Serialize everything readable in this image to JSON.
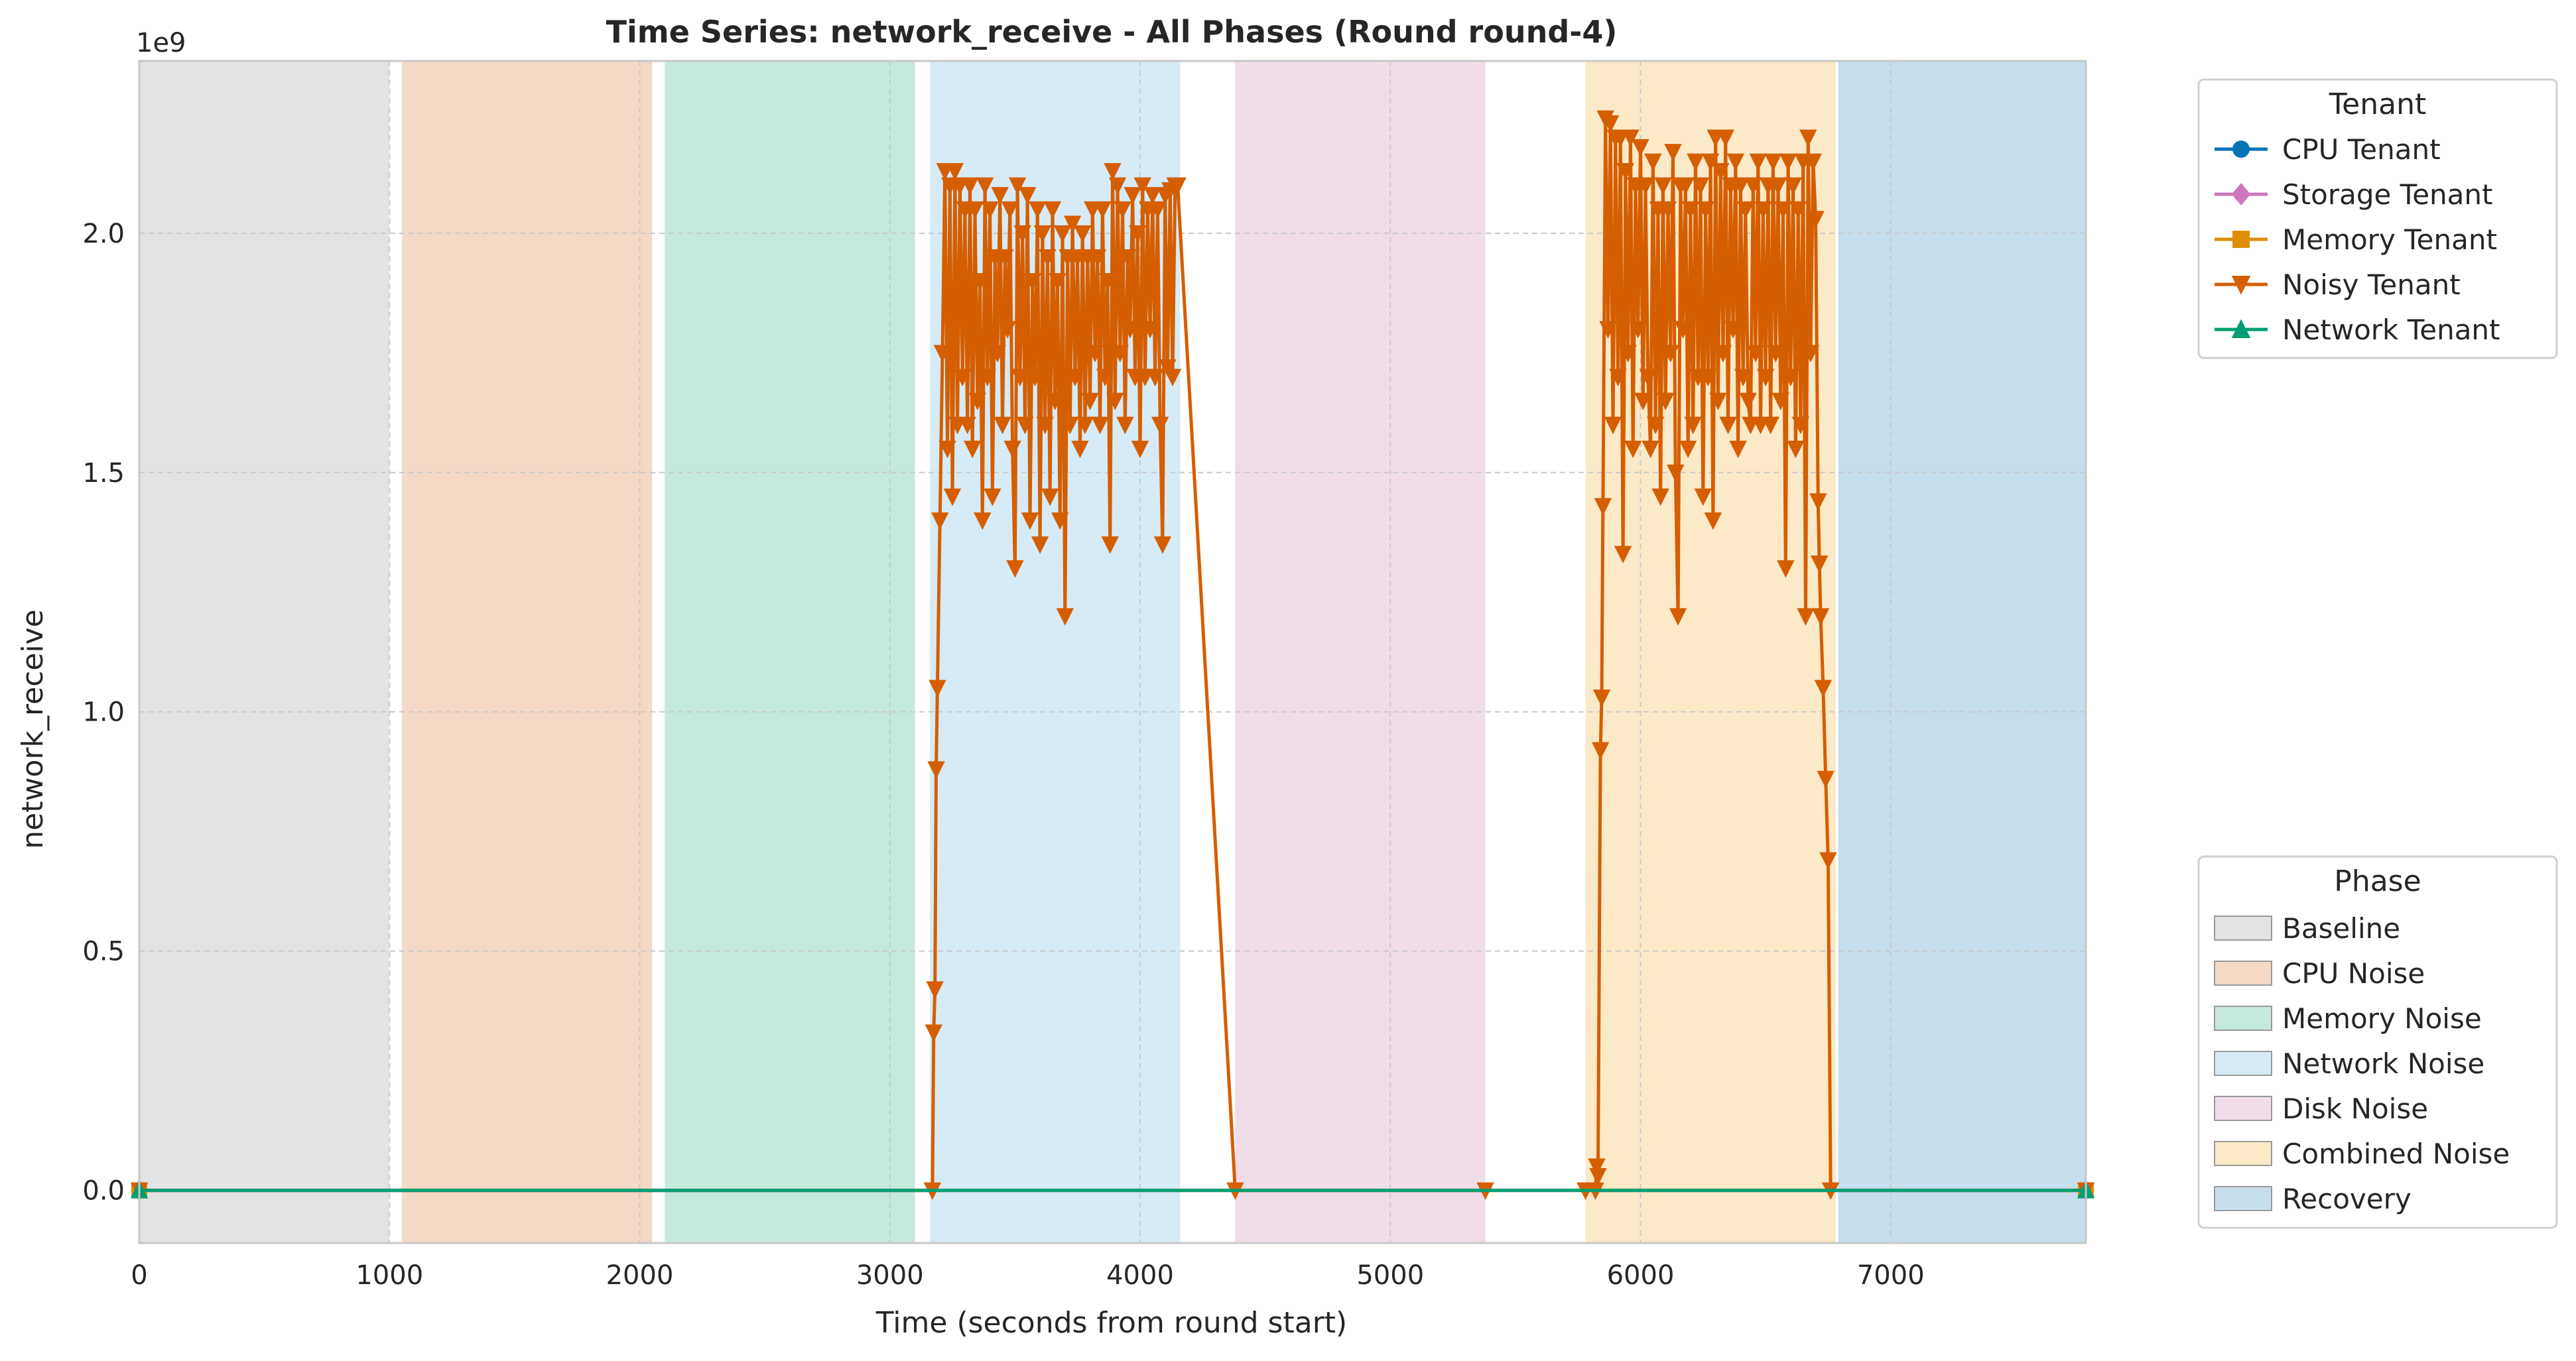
{
  "chart_data": {
    "type": "line",
    "title": "Time Series: network_receive - All Phases (Round round-4)",
    "xlabel": "Time (seconds from round start)",
    "ylabel": "network_receive",
    "y_offset_label": "1e9",
    "xlim": [
      0,
      7780
    ],
    "ylim": [
      -0.11,
      2.36
    ],
    "x_ticks": [
      0,
      1000,
      2000,
      3000,
      4000,
      5000,
      6000,
      7000
    ],
    "y_ticks": [
      0.0,
      0.5,
      1.0,
      1.5,
      2.0
    ],
    "y_tick_labels": [
      "0.0",
      "0.5",
      "1.0",
      "1.5",
      "2.0"
    ],
    "grid": true,
    "phases": [
      {
        "name": "Baseline",
        "start": 0,
        "end": 1000,
        "color": "#e3e3e3"
      },
      {
        "name": "CPU Noise",
        "start": 1050,
        "end": 2050,
        "color": "#f4d9c6"
      },
      {
        "name": "Memory Noise",
        "start": 2100,
        "end": 3100,
        "color": "#c6e9de"
      },
      {
        "name": "Network Noise",
        "start": 3160,
        "end": 4160,
        "color": "#d6ebf6"
      },
      {
        "name": "Disk Noise",
        "start": 4380,
        "end": 5380,
        "color": "#f1dcea"
      },
      {
        "name": "Combined Noise",
        "start": 5780,
        "end": 6780,
        "color": "#fbe9c8"
      },
      {
        "name": "Recovery",
        "start": 6790,
        "end": 7780,
        "color": "#c7deed"
      }
    ],
    "series": [
      {
        "name": "CPU Tenant",
        "color": "#0173b2",
        "marker": "circle",
        "segments": [
          [
            [
              0,
              0
            ],
            [
              7780,
              0
            ]
          ]
        ]
      },
      {
        "name": "Storage Tenant",
        "color": "#cc78bc",
        "marker": "diamond",
        "segments": [
          [
            [
              0,
              0
            ],
            [
              7780,
              0
            ]
          ]
        ]
      },
      {
        "name": "Memory Tenant",
        "color": "#de8f05",
        "marker": "square",
        "segments": [
          [
            [
              0,
              0
            ],
            [
              7780,
              0
            ]
          ]
        ]
      },
      {
        "name": "Noisy Tenant",
        "color": "#d55e00",
        "marker": "triangle-down",
        "segments": [
          [
            [
              0,
              0
            ],
            [
              3170,
              0
            ],
            [
              3175,
              0.33
            ],
            [
              3180,
              0.42
            ],
            [
              3185,
              0.88
            ],
            [
              3190,
              1.05
            ],
            [
              3200,
              1.4
            ],
            [
              3210,
              1.75
            ],
            [
              3220,
              2.13
            ],
            [
              3230,
              1.55
            ],
            [
              3240,
              2.1
            ],
            [
              3250,
              1.45
            ],
            [
              3260,
              2.13
            ],
            [
              3270,
              1.6
            ],
            [
              3280,
              2.1
            ],
            [
              3290,
              1.7
            ],
            [
              3300,
              2.05
            ],
            [
              3310,
              1.6
            ],
            [
              3320,
              2.1
            ],
            [
              3330,
              1.55
            ],
            [
              3340,
              2.05
            ],
            [
              3350,
              1.65
            ],
            [
              3360,
              1.9
            ],
            [
              3370,
              1.4
            ],
            [
              3380,
              2.1
            ],
            [
              3390,
              1.7
            ],
            [
              3400,
              2.05
            ],
            [
              3410,
              1.45
            ],
            [
              3420,
              1.95
            ],
            [
              3430,
              1.75
            ],
            [
              3440,
              2.08
            ],
            [
              3450,
              1.6
            ],
            [
              3460,
              1.95
            ],
            [
              3470,
              1.8
            ],
            [
              3480,
              2.05
            ],
            [
              3490,
              1.55
            ],
            [
              3500,
              1.3
            ],
            [
              3510,
              2.1
            ],
            [
              3520,
              1.7
            ],
            [
              3530,
              2.0
            ],
            [
              3540,
              1.6
            ],
            [
              3550,
              2.08
            ],
            [
              3560,
              1.4
            ],
            [
              3570,
              1.9
            ],
            [
              3580,
              1.7
            ],
            [
              3590,
              2.05
            ],
            [
              3600,
              1.35
            ],
            [
              3610,
              2.0
            ],
            [
              3620,
              1.6
            ],
            [
              3630,
              1.95
            ],
            [
              3640,
              1.45
            ],
            [
              3650,
              2.05
            ],
            [
              3660,
              1.65
            ],
            [
              3670,
              1.9
            ],
            [
              3680,
              1.4
            ],
            [
              3690,
              2.0
            ],
            [
              3700,
              1.2
            ],
            [
              3710,
              1.95
            ],
            [
              3720,
              1.6
            ],
            [
              3730,
              2.02
            ],
            [
              3740,
              1.7
            ],
            [
              3750,
              1.95
            ],
            [
              3760,
              1.55
            ],
            [
              3770,
              2.0
            ],
            [
              3780,
              1.6
            ],
            [
              3790,
              1.95
            ],
            [
              3800,
              1.65
            ],
            [
              3810,
              2.05
            ],
            [
              3820,
              1.75
            ],
            [
              3830,
              1.95
            ],
            [
              3840,
              1.6
            ],
            [
              3850,
              2.05
            ],
            [
              3860,
              1.7
            ],
            [
              3870,
              1.9
            ],
            [
              3880,
              1.35
            ],
            [
              3890,
              2.13
            ],
            [
              3900,
              1.65
            ],
            [
              3910,
              2.1
            ],
            [
              3920,
              1.75
            ],
            [
              3930,
              2.05
            ],
            [
              3940,
              1.6
            ],
            [
              3950,
              1.95
            ],
            [
              3960,
              1.8
            ],
            [
              3970,
              2.08
            ],
            [
              3980,
              1.7
            ],
            [
              3990,
              2.0
            ],
            [
              4000,
              1.55
            ],
            [
              4010,
              2.1
            ],
            [
              4020,
              1.7
            ],
            [
              4030,
              2.05
            ],
            [
              4040,
              1.8
            ],
            [
              4050,
              2.08
            ],
            [
              4060,
              1.7
            ],
            [
              4070,
              2.05
            ],
            [
              4080,
              1.6
            ],
            [
              4090,
              1.35
            ],
            [
              4100,
              2.08
            ],
            [
              4110,
              1.72
            ],
            [
              4120,
              2.09
            ],
            [
              4130,
              1.7
            ],
            [
              4140,
              2.1
            ],
            [
              4150,
              2.1
            ],
            [
              4380,
              0
            ],
            [
              5380,
              0
            ]
          ],
          [
            [
              5780,
              0
            ],
            [
              5820,
              0
            ],
            [
              5825,
              0.05
            ],
            [
              5830,
              0.03
            ],
            [
              5840,
              0.92
            ],
            [
              5845,
              1.03
            ],
            [
              5850,
              1.43
            ],
            [
              5860,
              2.24
            ],
            [
              5870,
              1.8
            ],
            [
              5880,
              2.23
            ],
            [
              5890,
              1.6
            ],
            [
              5900,
              2.2
            ],
            [
              5910,
              1.7
            ],
            [
              5920,
              2.2
            ],
            [
              5930,
              1.33
            ],
            [
              5940,
              2.13
            ],
            [
              5950,
              1.75
            ],
            [
              5960,
              2.2
            ],
            [
              5970,
              1.55
            ],
            [
              5980,
              2.1
            ],
            [
              5990,
              1.8
            ],
            [
              6000,
              2.18
            ],
            [
              6010,
              1.65
            ],
            [
              6020,
              2.1
            ],
            [
              6030,
              1.7
            ],
            [
              6040,
              1.55
            ],
            [
              6050,
              2.15
            ],
            [
              6060,
              1.6
            ],
            [
              6070,
              2.05
            ],
            [
              6080,
              1.45
            ],
            [
              6090,
              2.1
            ],
            [
              6100,
              1.65
            ],
            [
              6110,
              2.05
            ],
            [
              6120,
              1.75
            ],
            [
              6130,
              2.17
            ],
            [
              6140,
              1.5
            ],
            [
              6150,
              1.2
            ],
            [
              6160,
              2.1
            ],
            [
              6170,
              1.8
            ],
            [
              6180,
              2.1
            ],
            [
              6190,
              1.55
            ],
            [
              6200,
              2.05
            ],
            [
              6210,
              1.6
            ],
            [
              6220,
              2.15
            ],
            [
              6230,
              1.7
            ],
            [
              6240,
              2.1
            ],
            [
              6250,
              1.45
            ],
            [
              6260,
              2.05
            ],
            [
              6270,
              1.7
            ],
            [
              6280,
              2.15
            ],
            [
              6290,
              1.4
            ],
            [
              6300,
              2.2
            ],
            [
              6310,
              1.65
            ],
            [
              6320,
              2.13
            ],
            [
              6330,
              1.75
            ],
            [
              6340,
              2.2
            ],
            [
              6350,
              1.6
            ],
            [
              6360,
              2.1
            ],
            [
              6370,
              1.8
            ],
            [
              6380,
              2.15
            ],
            [
              6390,
              1.55
            ],
            [
              6400,
              2.1
            ],
            [
              6410,
              1.7
            ],
            [
              6420,
              2.05
            ],
            [
              6430,
              1.65
            ],
            [
              6440,
              1.6
            ],
            [
              6450,
              2.1
            ],
            [
              6460,
              1.75
            ],
            [
              6470,
              2.15
            ],
            [
              6480,
              1.6
            ],
            [
              6490,
              2.05
            ],
            [
              6500,
              1.7
            ],
            [
              6510,
              2.1
            ],
            [
              6520,
              1.6
            ],
            [
              6530,
              2.15
            ],
            [
              6540,
              1.75
            ],
            [
              6550,
              2.1
            ],
            [
              6560,
              1.65
            ],
            [
              6570,
              2.05
            ],
            [
              6580,
              1.3
            ],
            [
              6590,
              2.15
            ],
            [
              6600,
              1.7
            ],
            [
              6610,
              2.1
            ],
            [
              6620,
              1.55
            ],
            [
              6630,
              2.05
            ],
            [
              6640,
              1.6
            ],
            [
              6650,
              2.15
            ],
            [
              6660,
              1.2
            ],
            [
              6670,
              2.2
            ],
            [
              6680,
              1.75
            ],
            [
              6690,
              2.15
            ],
            [
              6700,
              2.03
            ],
            [
              6710,
              1.44
            ],
            [
              6715,
              1.31
            ],
            [
              6720,
              1.2
            ],
            [
              6730,
              1.05
            ],
            [
              6740,
              0.86
            ],
            [
              6750,
              0.69
            ],
            [
              6760,
              0.0
            ],
            [
              7780,
              0
            ]
          ]
        ]
      },
      {
        "name": "Network Tenant",
        "color": "#029e73",
        "marker": "triangle-up",
        "segments": [
          [
            [
              0,
              0
            ],
            [
              7780,
              0
            ]
          ]
        ]
      }
    ],
    "legend_tenant": {
      "title": "Tenant",
      "placement": "top-right outside"
    },
    "legend_phase": {
      "title": "Phase",
      "placement": "bottom-right outside"
    }
  }
}
